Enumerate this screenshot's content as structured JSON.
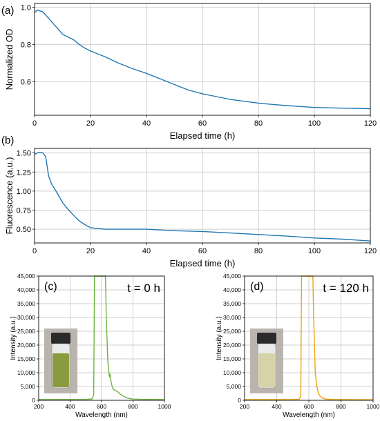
{
  "chart_data": [
    {
      "panel": "(a)",
      "type": "line",
      "xlabel": "Elapsed time (h)",
      "ylabel": "Normalized OD",
      "xlim": [
        0,
        120
      ],
      "ylim": [
        0.42,
        1.02
      ],
      "xticks": [
        "0",
        "20",
        "40",
        "60",
        "80",
        "100",
        "120"
      ],
      "yticks": [
        "0.6",
        "0.8",
        "1.0"
      ],
      "grid": true,
      "color": "#1f77b4",
      "x": [
        0,
        1,
        2,
        3,
        5,
        8,
        10,
        12,
        14,
        16,
        18,
        20,
        25,
        30,
        35,
        40,
        45,
        50,
        55,
        60,
        65,
        70,
        75,
        80,
        85,
        90,
        95,
        100,
        105,
        110,
        115,
        120
      ],
      "y": [
        0.97,
        0.985,
        0.98,
        0.975,
        0.94,
        0.89,
        0.855,
        0.84,
        0.825,
        0.8,
        0.78,
        0.765,
        0.735,
        0.7,
        0.67,
        0.645,
        0.615,
        0.585,
        0.555,
        0.535,
        0.52,
        0.505,
        0.495,
        0.485,
        0.478,
        0.472,
        0.467,
        0.462,
        0.46,
        0.458,
        0.457,
        0.455
      ]
    },
    {
      "panel": "(b)",
      "type": "line",
      "xlabel": "Elapsed time (h)",
      "ylabel": "Fluorescence (a.u.)",
      "xlim": [
        0,
        120
      ],
      "ylim": [
        0.32,
        1.56
      ],
      "xticks": [
        "0",
        "20",
        "40",
        "60",
        "80",
        "100",
        "120"
      ],
      "yticks": [
        "0.50",
        "0.75",
        "1.00",
        "1.25",
        "1.50"
      ],
      "grid": true,
      "color": "#1f77b4",
      "x": [
        0,
        1,
        2,
        3,
        4,
        5,
        6,
        8,
        10,
        12,
        14,
        16,
        18,
        20,
        25,
        30,
        40,
        50,
        60,
        70,
        80,
        90,
        100,
        110,
        120
      ],
      "y": [
        1.48,
        1.5,
        1.51,
        1.5,
        1.45,
        1.2,
        1.1,
        0.98,
        0.85,
        0.76,
        0.68,
        0.61,
        0.56,
        0.52,
        0.5,
        0.5,
        0.5,
        0.48,
        0.47,
        0.45,
        0.43,
        0.41,
        0.385,
        0.37,
        0.345
      ]
    },
    {
      "panel": "(c)",
      "type": "line",
      "annotation": "t = 0 h",
      "xlabel": "Wavelength (nm)",
      "ylabel": "Intensity (a.u.)",
      "xlim": [
        200,
        1000
      ],
      "ylim": [
        0,
        45000
      ],
      "xticks": [
        "200",
        "400",
        "600",
        "800",
        "1000"
      ],
      "yticks": [
        "0",
        "5,000",
        "10,000",
        "15,000",
        "20,000",
        "25,000",
        "30,000",
        "35,000",
        "40,000",
        "45,000"
      ],
      "grid": true,
      "color": "#6db33f",
      "x": [
        200,
        250,
        300,
        350,
        400,
        450,
        500,
        540,
        550,
        552,
        555,
        560,
        580,
        600,
        620,
        625,
        630,
        640,
        650,
        655,
        660,
        665,
        670,
        680,
        690,
        700,
        720,
        740,
        760,
        780,
        800,
        850,
        900,
        950,
        1000
      ],
      "y": [
        300,
        280,
        300,
        290,
        300,
        310,
        320,
        500,
        2000,
        20000,
        45000,
        45000,
        45000,
        45000,
        45000,
        45000,
        30000,
        14000,
        8500,
        9500,
        7000,
        5500,
        4500,
        3800,
        3500,
        3200,
        2200,
        1500,
        900,
        600,
        450,
        350,
        320,
        300,
        280
      ],
      "inset": "vial with green solution"
    },
    {
      "panel": "(d)",
      "type": "line",
      "annotation": "t = 120 h",
      "xlabel": "Wavelength (nm)",
      "ylabel": "Intensity (a.u.)",
      "xlim": [
        200,
        1000
      ],
      "ylim": [
        0,
        45000
      ],
      "xticks": [
        "200",
        "400",
        "600",
        "800",
        "1000"
      ],
      "yticks": [
        "0",
        "5,000",
        "10,000",
        "15,000",
        "20,000",
        "25,000",
        "30,000",
        "35,000",
        "40,000",
        "45,000"
      ],
      "grid": true,
      "color": "#f0a30a",
      "x": [
        200,
        250,
        300,
        350,
        400,
        450,
        500,
        540,
        550,
        552,
        555,
        560,
        580,
        600,
        620,
        625,
        630,
        640,
        650,
        660,
        670,
        680,
        690,
        700,
        720,
        740,
        760,
        780,
        800,
        850,
        900,
        950,
        1000
      ],
      "y": [
        250,
        240,
        250,
        240,
        260,
        250,
        270,
        400,
        1500,
        20000,
        45000,
        45000,
        45000,
        45000,
        45000,
        45000,
        30000,
        10000,
        5000,
        2500,
        1500,
        1000,
        700,
        500,
        350,
        300,
        280,
        260,
        250,
        240,
        230,
        220,
        210
      ],
      "inset": "vial with pale yellow solution"
    }
  ]
}
